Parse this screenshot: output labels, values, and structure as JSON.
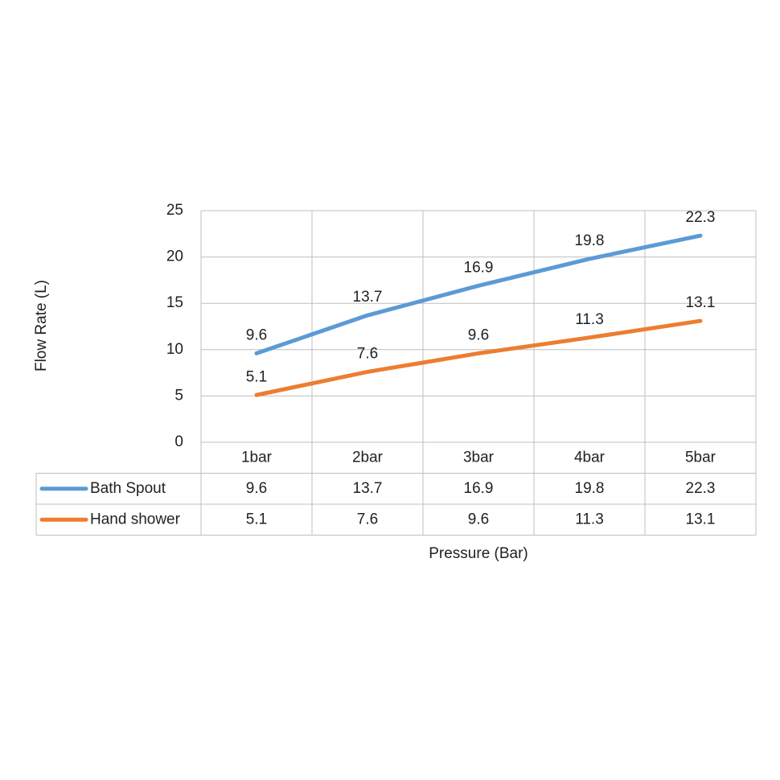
{
  "chart_data": {
    "type": "line",
    "x_label": "Pressure (Bar)",
    "y_label": "Flow Rate (L)",
    "categories": [
      "1bar",
      "2bar",
      "3bar",
      "4bar",
      "5bar"
    ],
    "series": [
      {
        "name": "Bath Spout",
        "color": "#5b9bd5",
        "values": [
          9.6,
          13.7,
          16.9,
          19.8,
          22.3
        ]
      },
      {
        "name": "Hand shower",
        "color": "#ed7d31",
        "values": [
          5.1,
          7.6,
          9.6,
          11.3,
          13.1
        ]
      }
    ],
    "ylim": [
      0,
      25
    ],
    "yticks": [
      0,
      5,
      10,
      15,
      20,
      25
    ],
    "grid": true,
    "data_table": true
  }
}
